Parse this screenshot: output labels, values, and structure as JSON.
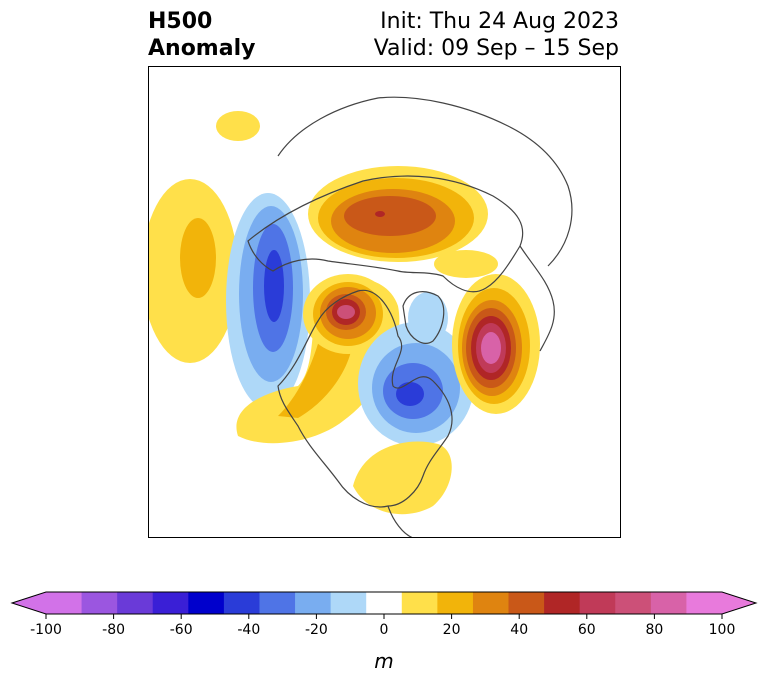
{
  "title": {
    "line1": "H500",
    "line2": "Anomaly",
    "init": "Init: Thu 24 Aug 2023",
    "valid": "Valid: 09 Sep – 15 Sep"
  },
  "colorbar": {
    "unit": "m",
    "ticks": [
      "-100",
      "-80",
      "-60",
      "-40",
      "-20",
      "0",
      "20",
      "40",
      "60",
      "80",
      "100"
    ],
    "colors": [
      "#d272e8",
      "#9b56e0",
      "#6a3ad8",
      "#3a1fd6",
      "#0000cc",
      "#2a3cd8",
      "#4f74e6",
      "#79adf0",
      "#aed8f8",
      "#ffffff",
      "#ffe04a",
      "#f2b40a",
      "#df8410",
      "#c95818",
      "#b02626",
      "#c03a58",
      "#cc5078",
      "#d862a8",
      "#e87adc"
    ],
    "extend_low": "#d272e8",
    "extend_high": "#e87adc"
  },
  "map": {
    "type": "polar-stereographic",
    "field": "500 hPa geopotential height anomaly",
    "highs": [
      {
        "region": "North Atlantic",
        "peak": 90
      },
      {
        "region": "Beaufort Sea / Alaska Arctic",
        "peak": 75
      },
      {
        "region": "Northern Siberia",
        "peak": 55
      },
      {
        "region": "Central North Pacific",
        "peak": 30
      },
      {
        "region": "Eastern United States",
        "peak": 15
      }
    ],
    "lows": [
      {
        "region": "Eastern Siberia / Kamchatka",
        "peak": -40
      },
      {
        "region": "Hudson Bay / Eastern Canada",
        "peak": -40
      }
    ]
  }
}
